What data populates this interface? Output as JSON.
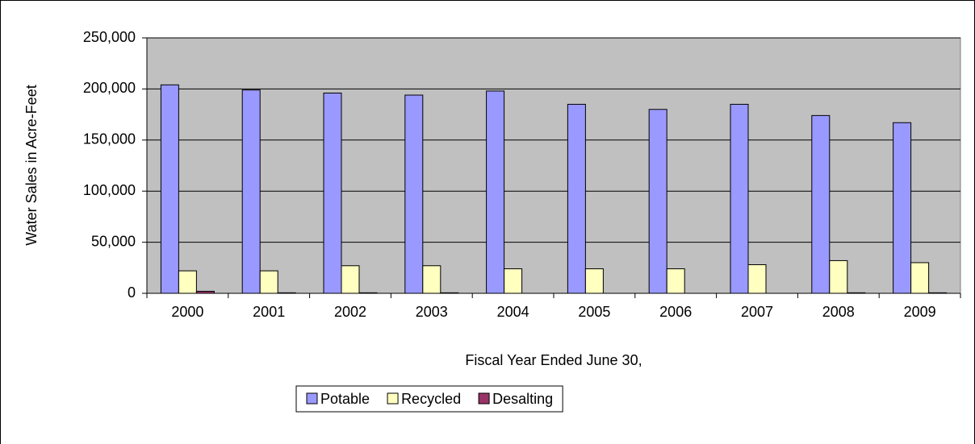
{
  "chart_data": {
    "type": "bar",
    "x_label": "Fiscal Year Ended June 30,",
    "y_label": "Water Sales in Acre-Feet",
    "categories": [
      "2000",
      "2001",
      "2002",
      "2003",
      "2004",
      "2005",
      "2006",
      "2007",
      "2008",
      "2009"
    ],
    "series": [
      {
        "name": "Potable",
        "color": "#9999ff",
        "values": [
          204000,
          199000,
          196000,
          194000,
          198000,
          185000,
          180000,
          185000,
          174000,
          167000
        ]
      },
      {
        "name": "Recycled",
        "color": "#ffffc0",
        "values": [
          22000,
          22000,
          27000,
          27000,
          24000,
          24000,
          24000,
          28000,
          32000,
          30000
        ]
      },
      {
        "name": "Desalting",
        "color": "#993366",
        "values": [
          2000,
          500,
          500,
          500,
          0,
          0,
          0,
          0,
          500,
          500
        ]
      }
    ],
    "ylim": [
      0,
      250000
    ],
    "yticks": [
      0,
      {
        "value": 50000,
        "label": "50,000"
      },
      {
        "value": 100000,
        "label": "100,000"
      },
      {
        "value": 150000,
        "label": "150,000"
      },
      {
        "value": 200000,
        "label": "200,000"
      },
      {
        "value": 250000,
        "label": "250,000"
      }
    ],
    "grid": true,
    "legend": "bottom"
  }
}
